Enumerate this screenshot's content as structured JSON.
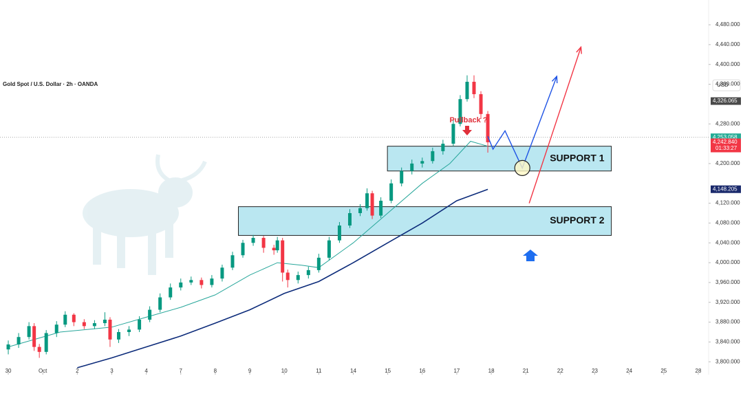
{
  "chart_data": {
    "type": "candlestick",
    "title": "Gold Spot / U.S. Dollar · 2h · OANDA",
    "currency": "USD",
    "x": [
      0,
      0.3,
      0.6,
      0.75,
      0.9,
      1.1,
      1.4,
      1.65,
      1.9,
      2.2,
      2.5,
      2.8,
      2.95,
      3.2,
      3.5,
      3.8,
      4.1,
      4.4,
      4.7,
      5.0,
      5.3,
      5.6,
      5.9,
      6.2,
      6.5,
      6.8,
      7.1,
      7.4,
      7.7,
      7.8,
      7.95,
      8.1,
      8.4,
      8.7,
      9.0,
      9.3,
      9.6,
      9.9,
      10.2,
      10.4,
      10.55,
      10.8,
      11.1,
      11.4,
      11.7,
      12.0,
      12.3,
      12.6,
      12.9,
      13.1,
      13.3,
      13.5,
      13.7,
      13.9
    ],
    "open": [
      3825,
      3835,
      3850,
      3872,
      3830,
      3820,
      3858,
      3875,
      3895,
      3880,
      3872,
      3878,
      3885,
      3845,
      3860,
      3865,
      3885,
      3905,
      3930,
      3950,
      3960,
      3965,
      3955,
      3968,
      3990,
      4015,
      4040,
      4050,
      4030,
      4025,
      4045,
      3980,
      3965,
      3975,
      3985,
      4010,
      4045,
      4075,
      4100,
      4110,
      4140,
      4095,
      4125,
      4160,
      4185,
      4200,
      4205,
      4225,
      4240,
      4280,
      4330,
      4365,
      4340,
      4300
    ],
    "high": [
      3843,
      3858,
      3880,
      3878,
      3836,
      3864,
      3882,
      3902,
      3898,
      3886,
      3884,
      3900,
      3890,
      3866,
      3872,
      3892,
      3912,
      3938,
      3958,
      3968,
      3972,
      3970,
      3975,
      3996,
      4022,
      4046,
      4056,
      4054,
      4036,
      4052,
      4050,
      3986,
      3982,
      3992,
      4018,
      4052,
      4082,
      4108,
      4118,
      4150,
      4145,
      4132,
      4168,
      4192,
      4208,
      4212,
      4232,
      4248,
      4288,
      4338,
      4378,
      4378,
      4346,
      4306
    ],
    "low": [
      3815,
      3828,
      3845,
      3822,
      3808,
      3815,
      3850,
      3870,
      3872,
      3866,
      3866,
      3872,
      3830,
      3838,
      3852,
      3860,
      3880,
      3900,
      3925,
      3944,
      3955,
      3948,
      3950,
      3962,
      3985,
      4010,
      4034,
      4020,
      4016,
      4020,
      3962,
      3950,
      3958,
      3968,
      3980,
      4005,
      4040,
      4070,
      4094,
      4105,
      4088,
      4090,
      4120,
      4154,
      4178,
      4192,
      4200,
      4218,
      4235,
      4275,
      4325,
      4332,
      4290,
      4222
    ],
    "close": [
      3835,
      3850,
      3872,
      3830,
      3820,
      3858,
      3875,
      3895,
      3880,
      3872,
      3878,
      3885,
      3845,
      3860,
      3865,
      3885,
      3905,
      3930,
      3950,
      3960,
      3965,
      3955,
      3968,
      3990,
      4015,
      4040,
      4050,
      4030,
      4025,
      4045,
      3980,
      3965,
      3975,
      3985,
      4010,
      4045,
      4075,
      4100,
      4110,
      4140,
      4095,
      4125,
      4160,
      4185,
      4200,
      4205,
      4225,
      4240,
      4280,
      4330,
      4365,
      4340,
      4300,
      4243
    ],
    "up_color": "#089981",
    "down_color": "#f23645",
    "lines": [
      {
        "color": "#26a69a",
        "x": [
          0,
          1.5,
          3,
          4,
          5,
          6,
          7,
          7.8,
          8.5,
          9,
          10,
          11,
          12,
          12.8,
          13.4,
          13.9
        ],
        "values": [
          3830,
          3860,
          3870,
          3890,
          3910,
          3935,
          3975,
          4000,
          3995,
          3990,
          4040,
          4100,
          4160,
          4200,
          4245,
          4235
        ]
      },
      {
        "color": "#0c2b7a",
        "x": [
          2,
          3,
          4,
          5,
          6,
          7,
          8,
          9,
          10,
          11,
          12,
          13,
          13.9
        ],
        "values": [
          3788,
          3808,
          3830,
          3852,
          3878,
          3905,
          3938,
          3962,
          4000,
          4040,
          4080,
          4125,
          4148
        ]
      }
    ],
    "zones": [
      {
        "label": "SUPPORT 1",
        "x_start": 10.99,
        "x_end": 17.48,
        "top": 4235,
        "bottom": 4185
      },
      {
        "label": "SUPPORT 2",
        "x_start": 6.67,
        "x_end": 17.48,
        "top": 4113,
        "bottom": 4055
      }
    ],
    "projections": [
      {
        "color": "#1e53e5",
        "x": [
          13.9,
          14.05,
          14.4,
          14.9,
          15.9
        ],
        "values": [
          4255,
          4229,
          4266,
          4191,
          4376
        ]
      },
      {
        "color": "#f23645",
        "x": [
          15.1,
          16.6
        ],
        "values": [
          4120,
          4435
        ]
      }
    ],
    "annotation": "Pullback ?",
    "xlim": [
      -0.24,
      20.3
    ],
    "xticks": [
      {
        "value": 0,
        "label": "30"
      },
      {
        "value": 1,
        "label": "Oct"
      },
      {
        "value": 2,
        "label": "2"
      },
      {
        "value": 3,
        "label": "3"
      },
      {
        "value": 4,
        "label": "4"
      },
      {
        "value": 5,
        "label": "7"
      },
      {
        "value": 6,
        "label": "8"
      },
      {
        "value": 7,
        "label": "9"
      },
      {
        "value": 8,
        "label": "10"
      },
      {
        "value": 9,
        "label": "11"
      },
      {
        "value": 10,
        "label": "14"
      },
      {
        "value": 11,
        "label": "15"
      },
      {
        "value": 12,
        "label": "16"
      },
      {
        "value": 13,
        "label": "17"
      },
      {
        "value": 14,
        "label": "18"
      },
      {
        "value": 15,
        "label": "21"
      },
      {
        "value": 16,
        "label": "22"
      },
      {
        "value": 17,
        "label": "23"
      },
      {
        "value": 18,
        "label": "24"
      },
      {
        "value": 19,
        "label": "25"
      },
      {
        "value": 20,
        "label": "28"
      }
    ],
    "ylim": [
      3774,
      4530
    ],
    "yticks": [
      {
        "value": 4480,
        "label": "4,480.000"
      },
      {
        "value": 4440,
        "label": "4,440.000"
      },
      {
        "value": 4400,
        "label": "4,400.000"
      },
      {
        "value": 4360,
        "label": "4,360.000"
      },
      {
        "value": 4280,
        "label": "4,280.000"
      },
      {
        "value": 4200,
        "label": "4,200.000"
      },
      {
        "value": 4120,
        "label": "4,120.000"
      },
      {
        "value": 4080,
        "label": "4,080.000"
      },
      {
        "value": 4040,
        "label": "4,040.000"
      },
      {
        "value": 4000,
        "label": "4,000.000"
      },
      {
        "value": 3960,
        "label": "3,960.000"
      },
      {
        "value": 3920,
        "label": "3,920.000"
      },
      {
        "value": 3880,
        "label": "3,880.000"
      },
      {
        "value": 3840,
        "label": "3,840.000"
      },
      {
        "value": 3800,
        "label": "3,800.000"
      }
    ],
    "price_labels": [
      {
        "value": 4326.065,
        "label": "4,326.065",
        "color": "#4a4a4a"
      },
      {
        "value": 4253.058,
        "label": "4,253.058",
        "color": "#22ab94"
      },
      {
        "value": 4242.84,
        "label": "4,242.840",
        "color": "#f23645",
        "countdown": "01:33:27"
      },
      {
        "value": 4148.205,
        "label": "4,148.205",
        "color": "#1a2a6c"
      }
    ]
  }
}
